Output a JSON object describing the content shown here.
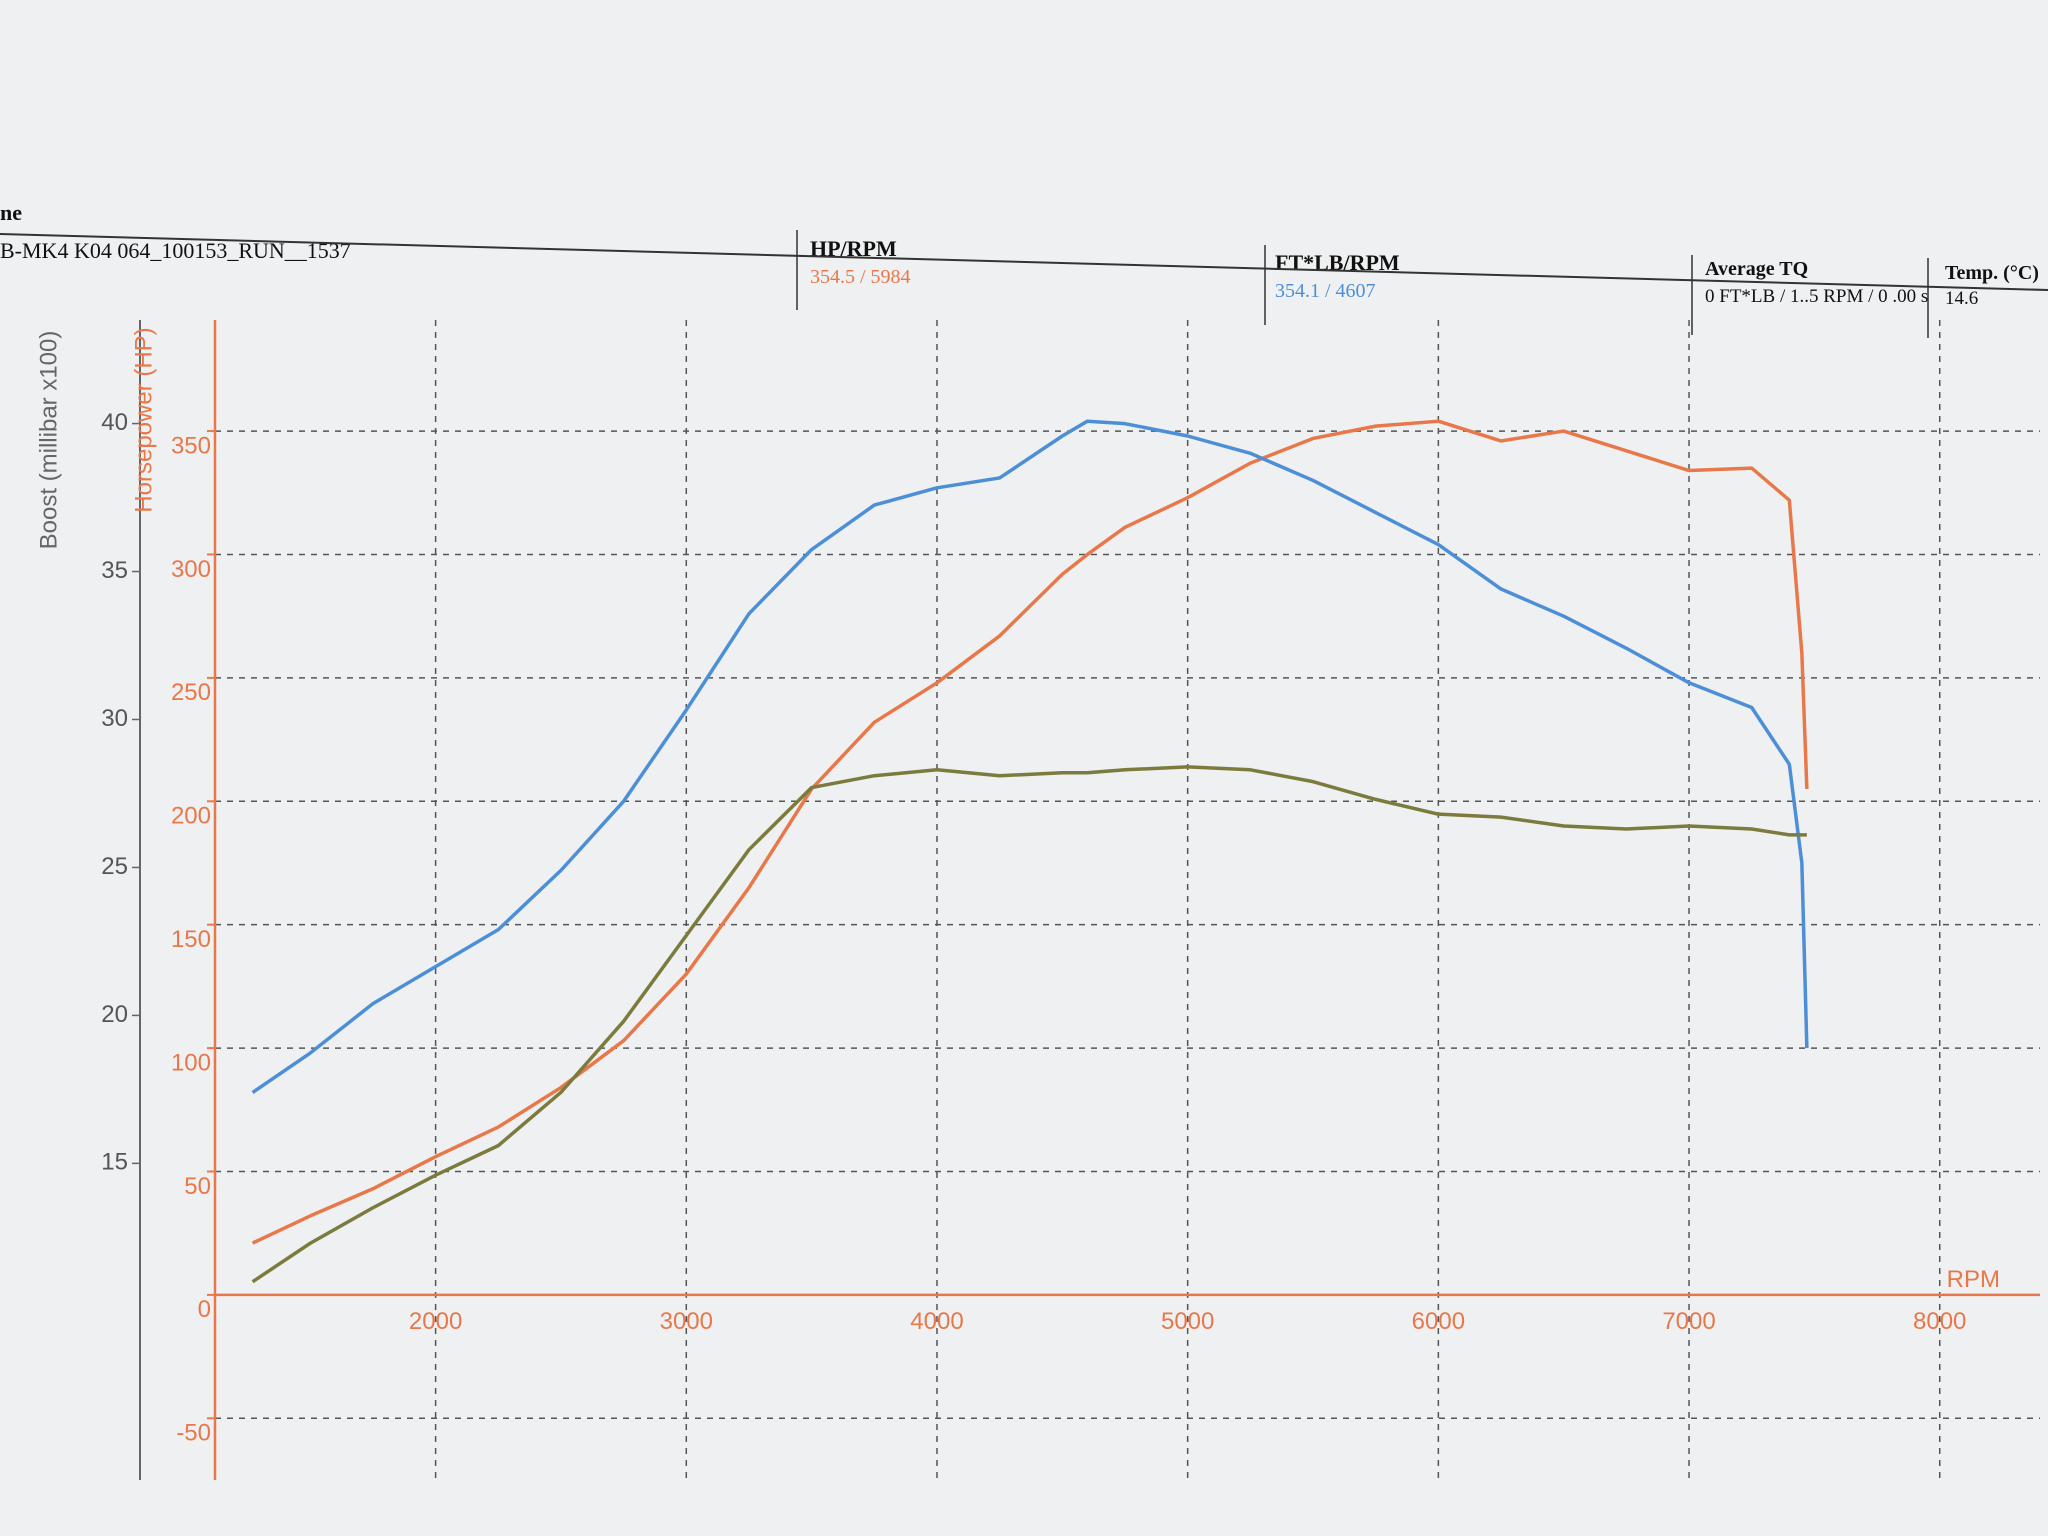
{
  "header": {
    "title": "ne",
    "run": "B-MK4 K04 064_100153_RUN__1537",
    "fields": [
      {
        "label": "HP/RPM",
        "value": "354.5 / 5984"
      },
      {
        "label": "FT*LB/RPM",
        "value": "354.1 / 4607"
      },
      {
        "label": "Average TQ",
        "value": "0 FT*LB / 1..5 RPM / 0 .00 s"
      },
      {
        "label": "Temp. (°C)",
        "value": "14.6"
      }
    ]
  },
  "chart_data": {
    "type": "line",
    "x_label": "RPM",
    "y_label": "Horsepower (HP)",
    "y2_label": "Boost (millibar x100)",
    "x": [
      1270,
      1500,
      1750,
      2000,
      2250,
      2500,
      2750,
      3000,
      3250,
      3500,
      3750,
      4000,
      4250,
      4500,
      4600,
      4750,
      5000,
      5250,
      5500,
      5750,
      6000,
      6250,
      6500,
      6750,
      7000,
      7250,
      7400,
      7450,
      7470
    ],
    "xlim": [
      1120,
      8400
    ],
    "xticks": [
      2000,
      3000,
      4000,
      5000,
      6000,
      7000,
      8000
    ],
    "ylim": [
      -75,
      395
    ],
    "yticks": [
      -50,
      0,
      50,
      100,
      150,
      200,
      250,
      300,
      350
    ],
    "y2lim": [
      4.3,
      43.5
    ],
    "y2ticks": [
      15,
      20,
      25,
      30,
      35,
      40
    ],
    "grid": true,
    "series": [
      {
        "color": "#e8784a",
        "values": [
          21,
          32,
          43,
          56,
          68,
          84,
          103,
          130,
          165,
          205,
          232,
          248,
          267,
          292,
          300,
          311,
          323,
          337,
          347,
          352,
          354,
          346,
          350,
          342,
          334,
          335,
          322,
          260,
          205
        ]
      },
      {
        "color": "#4d8fd6",
        "values": [
          82,
          98,
          118,
          133,
          148,
          172,
          200,
          237,
          276,
          302,
          320,
          327,
          331,
          348,
          354,
          353,
          348,
          341,
          330,
          317,
          304,
          286,
          275,
          262,
          248,
          238,
          215,
          175,
          100
        ]
      },
      {
        "color": "#7b7b3e",
        "axis": "y2",
        "values": [
          11.0,
          12.3,
          13.5,
          14.6,
          15.6,
          17.4,
          19.8,
          22.7,
          25.6,
          27.7,
          28.1,
          28.3,
          28.1,
          28.2,
          28.2,
          28.3,
          28.4,
          28.3,
          27.9,
          27.3,
          26.8,
          26.7,
          26.4,
          26.3,
          26.4,
          26.3,
          26.1,
          26.1,
          26.1
        ]
      }
    ]
  }
}
